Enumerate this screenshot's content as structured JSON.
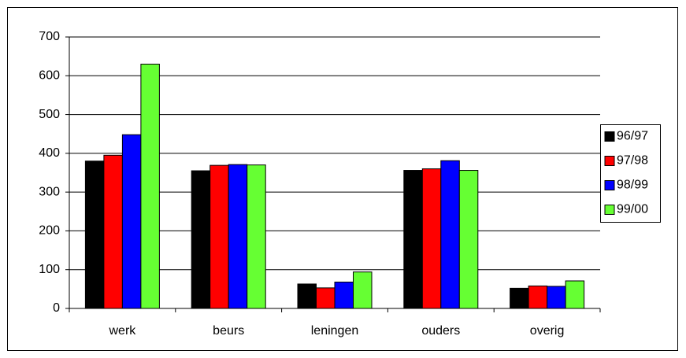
{
  "chart_data": {
    "type": "bar",
    "categories": [
      "werk",
      "beurs",
      "leningen",
      "ouders",
      "overig"
    ],
    "series": [
      {
        "name": "96/97",
        "color": "#000000",
        "values": [
          380,
          355,
          63,
          356,
          52
        ]
      },
      {
        "name": "97/98",
        "color": "#ff0000",
        "values": [
          395,
          369,
          53,
          360,
          58
        ]
      },
      {
        "name": "98/99",
        "color": "#0000ff",
        "values": [
          448,
          371,
          68,
          381,
          57
        ]
      },
      {
        "name": "99/00",
        "color": "#66ff33",
        "values": [
          630,
          370,
          94,
          356,
          71
        ]
      }
    ],
    "ylim": [
      0,
      700
    ],
    "yticks": [
      0,
      100,
      200,
      300,
      400,
      500,
      600,
      700
    ],
    "grid": true,
    "legend": "right"
  }
}
